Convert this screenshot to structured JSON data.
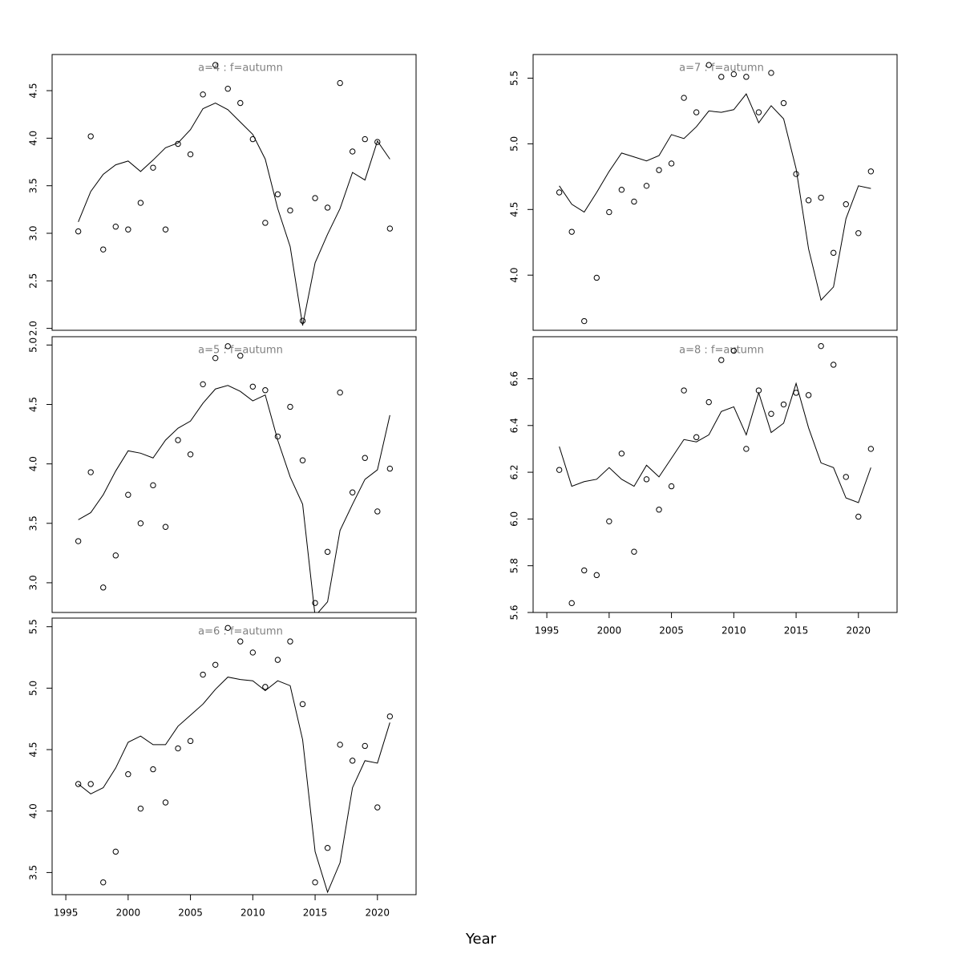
{
  "xlabel": "Year",
  "chart_data": [
    {
      "type": "line",
      "title": "a=4 : f=autumn",
      "x": [
        1996,
        1997,
        1998,
        1999,
        2000,
        2001,
        2002,
        2003,
        2004,
        2005,
        2006,
        2007,
        2008,
        2009,
        2010,
        2011,
        2012,
        2013,
        2014,
        2015,
        2016,
        2017,
        2018,
        2019,
        2020,
        2021
      ],
      "series": [
        {
          "style": "points",
          "color": "#000000",
          "values": [
            3.02,
            4.02,
            2.83,
            3.07,
            3.04,
            3.32,
            3.69,
            3.04,
            3.94,
            3.83,
            4.46,
            4.77,
            4.52,
            4.37,
            3.99,
            3.11,
            3.41,
            3.24,
            2.08,
            3.37,
            3.27,
            4.58,
            3.86,
            3.99,
            3.96,
            3.05
          ]
        },
        {
          "style": "line",
          "color": "#000000",
          "values": [
            3.12,
            3.44,
            3.62,
            3.72,
            3.76,
            3.65,
            3.77,
            3.9,
            3.95,
            4.09,
            4.31,
            4.37,
            4.3,
            4.17,
            4.04,
            3.78,
            3.26,
            2.86,
            2.03,
            2.69,
            2.99,
            3.26,
            3.64,
            3.56,
            3.97,
            3.78
          ]
        }
      ],
      "xlim": [
        1993.9,
        2023.1
      ],
      "ylim": [
        1.98,
        4.88
      ],
      "yticks": [
        {
          "value": 2,
          "label": "2.0"
        },
        2.5,
        {
          "value": 3,
          "label": "3.0"
        },
        3.5,
        {
          "value": 4,
          "label": "4.0"
        },
        4.5
      ]
    },
    {
      "type": "line",
      "title": "a=7 : f=autumn",
      "x": [
        1996,
        1997,
        1998,
        1999,
        2000,
        2001,
        2002,
        2003,
        2004,
        2005,
        2006,
        2007,
        2008,
        2009,
        2010,
        2011,
        2012,
        2013,
        2014,
        2015,
        2016,
        2017,
        2018,
        2019,
        2020,
        2021
      ],
      "series": [
        {
          "style": "points",
          "color": "#000000",
          "values": [
            4.63,
            4.33,
            3.65,
            3.98,
            4.48,
            4.65,
            4.56,
            4.68,
            4.8,
            4.85,
            5.35,
            5.24,
            5.6,
            5.51,
            5.53,
            5.51,
            5.24,
            5.54,
            5.31,
            4.77,
            4.57,
            4.59,
            4.17,
            4.54,
            4.32,
            4.79
          ]
        },
        {
          "style": "line",
          "color": "#000000",
          "values": [
            4.68,
            4.54,
            4.48,
            4.63,
            4.79,
            4.93,
            4.9,
            4.87,
            4.91,
            5.07,
            5.04,
            5.13,
            5.25,
            5.24,
            5.26,
            5.38,
            5.16,
            5.29,
            5.19,
            4.81,
            4.2,
            3.81,
            3.91,
            4.43,
            4.68,
            4.66
          ]
        }
      ],
      "xlim": [
        1993.9,
        2023.1
      ],
      "ylim": [
        3.58,
        5.68
      ],
      "yticks": [
        {
          "value": 4,
          "label": "4.0"
        },
        4.5,
        {
          "value": 5,
          "label": "5.0"
        },
        5.5
      ]
    },
    {
      "type": "line",
      "title": "a=5 : f=autumn",
      "x": [
        1996,
        1997,
        1998,
        1999,
        2000,
        2001,
        2002,
        2003,
        2004,
        2005,
        2006,
        2007,
        2008,
        2009,
        2010,
        2011,
        2012,
        2013,
        2014,
        2015,
        2016,
        2017,
        2018,
        2019,
        2020,
        2021
      ],
      "series": [
        {
          "style": "points",
          "color": "#000000",
          "values": [
            3.35,
            3.93,
            2.96,
            3.23,
            3.74,
            3.5,
            3.82,
            3.47,
            4.2,
            4.08,
            4.67,
            4.89,
            4.99,
            4.91,
            4.65,
            4.62,
            4.23,
            4.48,
            4.03,
            2.83,
            3.26,
            4.6,
            3.76,
            4.05,
            3.6,
            3.96
          ]
        },
        {
          "style": "line",
          "color": "#000000",
          "values": [
            3.53,
            3.59,
            3.74,
            3.94,
            4.11,
            4.09,
            4.05,
            4.2,
            4.3,
            4.36,
            4.51,
            4.63,
            4.66,
            4.61,
            4.53,
            4.58,
            4.2,
            3.89,
            3.66,
            2.72,
            2.84,
            3.44,
            3.66,
            3.87,
            3.95,
            4.41
          ]
        }
      ],
      "xlim": [
        1993.9,
        2023.1
      ],
      "ylim": [
        2.75,
        5.07
      ],
      "yticks": [
        {
          "value": 3,
          "label": "3.0"
        },
        3.5,
        {
          "value": 4,
          "label": "4.0"
        },
        4.5,
        {
          "value": 5,
          "label": "5.0"
        }
      ]
    },
    {
      "type": "line",
      "title": "a=8 : f=autumn",
      "x": [
        1996,
        1997,
        1998,
        1999,
        2000,
        2001,
        2002,
        2003,
        2004,
        2005,
        2006,
        2007,
        2008,
        2009,
        2010,
        2011,
        2012,
        2013,
        2014,
        2015,
        2016,
        2017,
        2018,
        2019,
        2020,
        2021
      ],
      "series": [
        {
          "style": "points",
          "color": "#000000",
          "values": [
            6.21,
            5.64,
            5.78,
            5.76,
            5.99,
            6.28,
            5.86,
            6.17,
            6.04,
            6.14,
            6.55,
            6.35,
            6.5,
            6.68,
            6.72,
            6.3,
            6.55,
            6.45,
            6.49,
            6.54,
            6.53,
            6.74,
            6.66,
            6.18,
            6.01,
            6.3
          ]
        },
        {
          "style": "line",
          "color": "#000000",
          "values": [
            6.31,
            6.14,
            6.16,
            6.17,
            6.22,
            6.17,
            6.14,
            6.23,
            6.18,
            6.26,
            6.34,
            6.33,
            6.36,
            6.46,
            6.48,
            6.36,
            6.54,
            6.37,
            6.41,
            6.58,
            6.39,
            6.24,
            6.22,
            6.09,
            6.07,
            6.22
          ]
        }
      ],
      "xlim": [
        1993.9,
        2023.1
      ],
      "ylim": [
        5.6,
        6.78
      ],
      "xticks": [
        1995,
        2000,
        2005,
        2010,
        2015,
        2020
      ],
      "yticks": [
        5.6,
        5.8,
        {
          "value": 6,
          "label": "6.0"
        },
        6.2,
        6.4,
        6.6
      ]
    },
    {
      "type": "line",
      "title": "a=6 : f=autumn",
      "x": [
        1996,
        1997,
        1998,
        1999,
        2000,
        2001,
        2002,
        2003,
        2004,
        2005,
        2006,
        2007,
        2008,
        2009,
        2010,
        2011,
        2012,
        2013,
        2014,
        2015,
        2016,
        2017,
        2018,
        2019,
        2020,
        2021
      ],
      "series": [
        {
          "style": "points",
          "color": "#000000",
          "values": [
            4.22,
            4.22,
            3.42,
            3.67,
            4.3,
            4.02,
            4.34,
            4.07,
            4.51,
            4.57,
            5.11,
            5.19,
            5.49,
            5.38,
            5.29,
            5.01,
            5.23,
            5.38,
            4.87,
            3.42,
            3.7,
            4.54,
            4.41,
            4.53,
            4.03,
            4.77
          ]
        },
        {
          "style": "line",
          "color": "#000000",
          "values": [
            4.22,
            4.14,
            4.19,
            4.35,
            4.56,
            4.61,
            4.54,
            4.54,
            4.69,
            4.78,
            4.87,
            4.99,
            5.09,
            5.07,
            5.06,
            4.98,
            5.06,
            5.02,
            4.58,
            3.67,
            3.34,
            3.58,
            4.19,
            4.41,
            4.39,
            4.72
          ]
        }
      ],
      "xlim": [
        1993.9,
        2023.1
      ],
      "ylim": [
        3.32,
        5.57
      ],
      "xticks": [
        1995,
        2000,
        2005,
        2010,
        2015,
        2020
      ],
      "yticks": [
        3.5,
        {
          "value": 4,
          "label": "4.0"
        },
        4.5,
        {
          "value": 5,
          "label": "5.0"
        },
        5.5
      ]
    }
  ]
}
